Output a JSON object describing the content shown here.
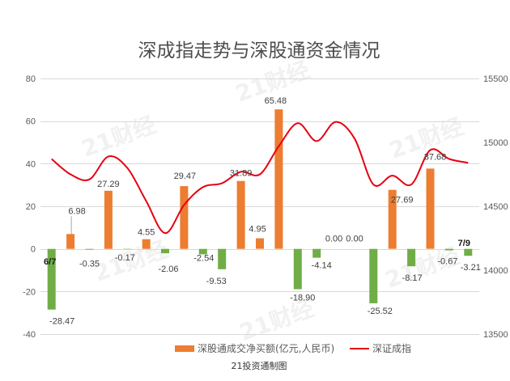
{
  "chart_data": {
    "type": "bar",
    "title": "深成指走势与深股通资金情况",
    "categories": [
      "6/7",
      "",
      "",
      "",
      "",
      "",
      "",
      "",
      "",
      "",
      "",
      "",
      "",
      "",
      "",
      "",
      "",
      "",
      "",
      "",
      "",
      "",
      "7/9"
    ],
    "series": [
      {
        "name": "深股通成交净买额(亿元,人民币)",
        "type": "bar",
        "axis": "left",
        "values": [
          -28.47,
          6.98,
          -0.35,
          27.29,
          -0.17,
          4.55,
          -2.06,
          29.47,
          -2.54,
          -9.53,
          31.89,
          4.95,
          65.48,
          -18.9,
          -4.14,
          0.0,
          0.0,
          -25.52,
          27.69,
          -8.17,
          37.68,
          -0.67,
          -3.21
        ]
      },
      {
        "name": "深证成指",
        "type": "line",
        "axis": "right",
        "values": [
          14870,
          14750,
          14710,
          14890,
          14800,
          14540,
          14290,
          14510,
          14650,
          14680,
          14770,
          14750,
          14970,
          15150,
          15010,
          15160,
          15030,
          14670,
          14740,
          14670,
          14940,
          14870,
          14840
        ]
      }
    ],
    "y_left": {
      "range": [
        -40,
        80
      ],
      "ticks": [
        80,
        60,
        40,
        20,
        0,
        -20,
        -40
      ]
    },
    "y_right": {
      "range": [
        13500,
        15500
      ],
      "ticks": [
        15500,
        15000,
        14500,
        14000,
        13500
      ]
    },
    "data_labels": true,
    "grid": true,
    "legend": "bottom",
    "colors": {
      "bar_positive": "#ED7D31",
      "bar_negative": "#70AD47",
      "line": "#E60012",
      "grid": "#D9D9D9",
      "leader": "#A6A6A6"
    }
  },
  "source_note": "21投资通制图",
  "watermark": "21财经"
}
